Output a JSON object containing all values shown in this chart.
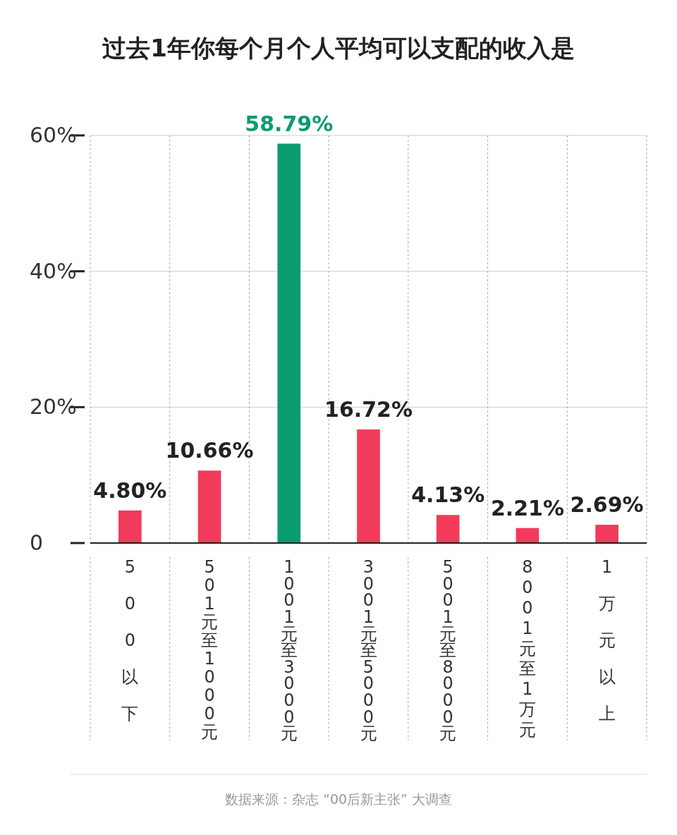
{
  "chart_data": {
    "type": "bar",
    "title": "过去1年你每个月个人平均可以支配的收入是",
    "categories": [
      "500以下",
      "501元至1000元",
      "1001元至3000元",
      "3001元至5000元",
      "5001元至8000元",
      "8001元至1万元",
      "1万元以上"
    ],
    "values": [
      4.8,
      10.66,
      58.79,
      16.72,
      4.13,
      2.21,
      2.69
    ],
    "colors": [
      "#f23b5a",
      "#f23b5a",
      "#0a9b6e",
      "#f23b5a",
      "#f23b5a",
      "#f23b5a",
      "#f23b5a"
    ],
    "value_labels": [
      "4.80%",
      "10.66%",
      "58.79%",
      "16.72%",
      "4.13%",
      "2.21%",
      "2.69%"
    ],
    "ylim": [
      0,
      60
    ],
    "yticks": [
      0,
      {
        "value": 20,
        "label": "20%"
      },
      {
        "value": 40,
        "label": "40%"
      },
      {
        "value": 60,
        "label": "60%"
      }
    ],
    "grid": true,
    "annotations": [
      "数据来源：杂志 “00后新主张” 大调查"
    ]
  }
}
